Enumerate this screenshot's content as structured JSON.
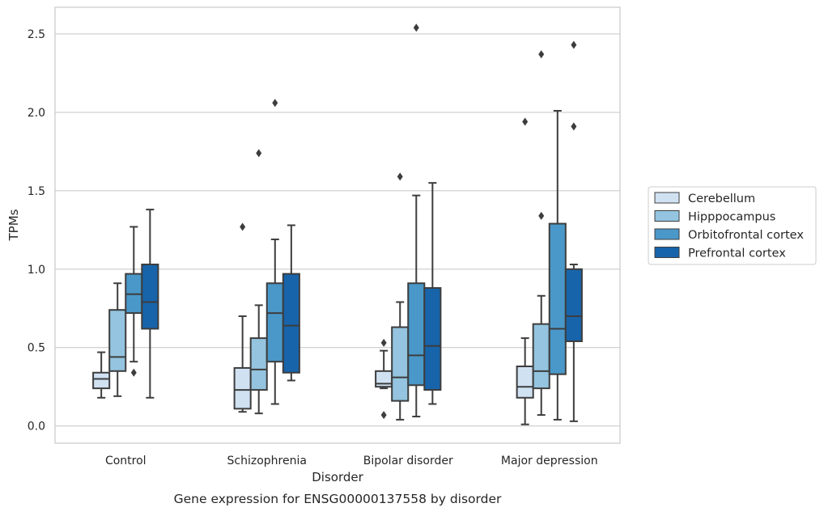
{
  "chart_data": {
    "type": "boxplot",
    "caption": "Gene expression for ENSG00000137558 by disorder",
    "xlabel": "Disorder",
    "ylabel": "TPMs",
    "ylim": [
      -0.11,
      2.67
    ],
    "yticks": [
      0.0,
      0.5,
      1.0,
      1.5,
      2.0,
      2.5
    ],
    "ytick_labels": [
      "0.0",
      "0.5",
      "1.0",
      "1.5",
      "2.0",
      "2.5"
    ],
    "grid": true,
    "legend_position": "right",
    "categories": [
      "Control",
      "Schizophrenia",
      "Bipolar disorder",
      "Major depression"
    ],
    "series": [
      {
        "name": "Cerebellum",
        "color": "#d0e1f2",
        "boxes": [
          {
            "whisker_low": 0.18,
            "q1": 0.24,
            "median": 0.3,
            "q3": 0.34,
            "whisker_high": 0.47,
            "outliers": []
          },
          {
            "whisker_low": 0.09,
            "q1": 0.11,
            "median": 0.23,
            "q3": 0.37,
            "whisker_high": 0.7,
            "outliers": [
              1.27
            ]
          },
          {
            "whisker_low": 0.24,
            "q1": 0.25,
            "median": 0.27,
            "q3": 0.35,
            "whisker_high": 0.48,
            "outliers": [
              0.53,
              0.07
            ]
          },
          {
            "whisker_low": 0.01,
            "q1": 0.18,
            "median": 0.25,
            "q3": 0.38,
            "whisker_high": 0.56,
            "outliers": [
              1.94
            ]
          }
        ]
      },
      {
        "name": "Hipppocampus",
        "color": "#94c4df",
        "boxes": [
          {
            "whisker_low": 0.19,
            "q1": 0.35,
            "median": 0.44,
            "q3": 0.74,
            "whisker_high": 0.91,
            "outliers": []
          },
          {
            "whisker_low": 0.08,
            "q1": 0.23,
            "median": 0.36,
            "q3": 0.56,
            "whisker_high": 0.77,
            "outliers": [
              1.74
            ]
          },
          {
            "whisker_low": 0.04,
            "q1": 0.16,
            "median": 0.31,
            "q3": 0.63,
            "whisker_high": 0.79,
            "outliers": [
              1.59
            ]
          },
          {
            "whisker_low": 0.07,
            "q1": 0.24,
            "median": 0.35,
            "q3": 0.65,
            "whisker_high": 0.83,
            "outliers": [
              1.34,
              2.37
            ]
          }
        ]
      },
      {
        "name": "Orbitofrontal cortex",
        "color": "#4a98c9",
        "boxes": [
          {
            "whisker_low": 0.41,
            "q1": 0.72,
            "median": 0.84,
            "q3": 0.97,
            "whisker_high": 1.27,
            "outliers": [
              0.34
            ]
          },
          {
            "whisker_low": 0.14,
            "q1": 0.41,
            "median": 0.72,
            "q3": 0.91,
            "whisker_high": 1.19,
            "outliers": [
              2.06
            ]
          },
          {
            "whisker_low": 0.06,
            "q1": 0.26,
            "median": 0.45,
            "q3": 0.91,
            "whisker_high": 1.47,
            "outliers": [
              2.54
            ]
          },
          {
            "whisker_low": 0.04,
            "q1": 0.33,
            "median": 0.62,
            "q3": 1.29,
            "whisker_high": 2.01,
            "outliers": []
          }
        ]
      },
      {
        "name": "Prefrontal cortex",
        "color": "#1764ab",
        "boxes": [
          {
            "whisker_low": 0.18,
            "q1": 0.62,
            "median": 0.79,
            "q3": 1.03,
            "whisker_high": 1.38,
            "outliers": []
          },
          {
            "whisker_low": 0.29,
            "q1": 0.34,
            "median": 0.64,
            "q3": 0.97,
            "whisker_high": 1.28,
            "outliers": []
          },
          {
            "whisker_low": 0.14,
            "q1": 0.23,
            "median": 0.51,
            "q3": 0.88,
            "whisker_high": 1.55,
            "outliers": []
          },
          {
            "whisker_low": 0.03,
            "q1": 0.54,
            "median": 0.7,
            "q3": 1.0,
            "whisker_high": 1.03,
            "outliers": [
              1.91,
              2.43
            ]
          }
        ]
      }
    ]
  }
}
